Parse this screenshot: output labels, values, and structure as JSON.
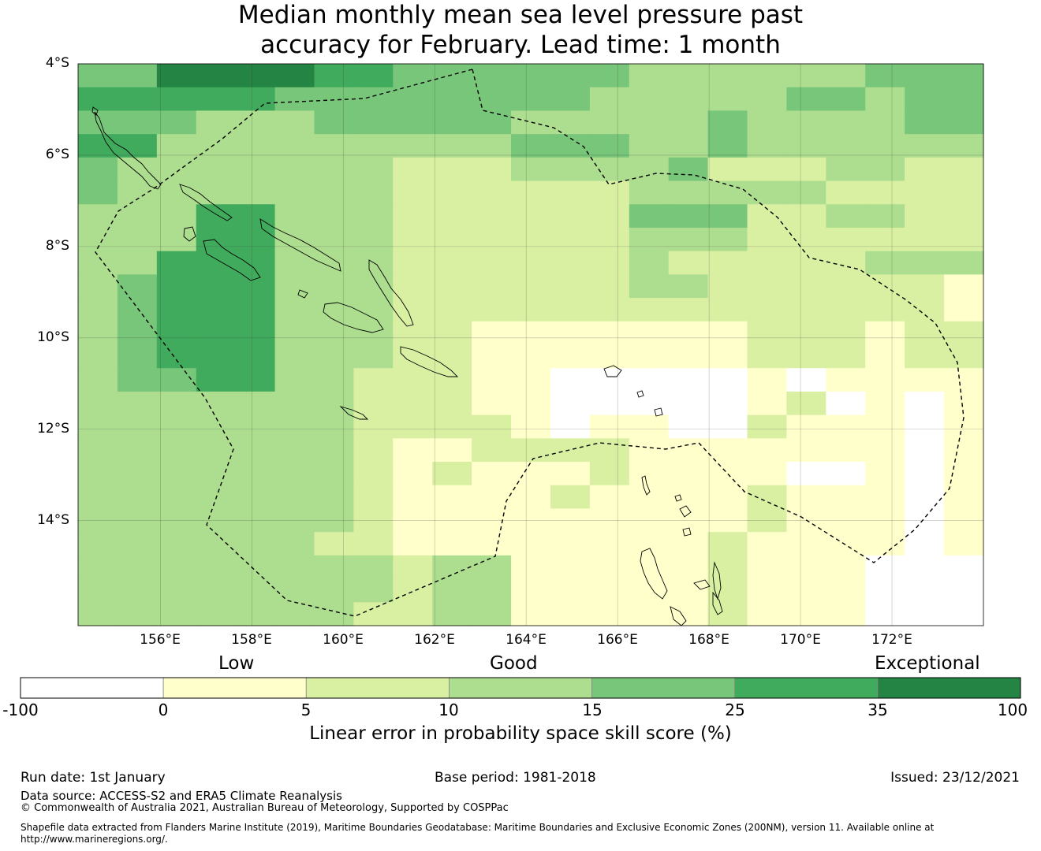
{
  "title": {
    "line1": "Median monthly mean sea level pressure past",
    "line2": "accuracy for February. Lead time: 1 month"
  },
  "map": {
    "lat_labels": [
      "4°S",
      "6°S",
      "8°S",
      "10°S",
      "12°S",
      "14°S"
    ],
    "lon_labels": [
      "156°E",
      "158°E",
      "160°E",
      "162°E",
      "164°E",
      "166°E",
      "168°E",
      "170°E",
      "172°E"
    ],
    "grid": {
      "lon_range": [
        154.2,
        174.0
      ],
      "lat_range": [
        -4.0,
        -16.3
      ],
      "cells": [
        "44666655444444333333444",
        "55555444444443333344344",
        "44433344444333334333344",
        "55333333333444334333333",
        "43333333222333342223322",
        "43333333222222333332222",
        "33355333222222444223322",
        "33355333222222333222222",
        "33555333222222322222333",
        "34555333222222332222221",
        "34555333222222222222221",
        "34555333221111111222122",
        "34555333221111111222122",
        "34455332221100000101111",
        "33333332221100000120101",
        "33333332222101100211101",
        "33333332112222111111101",
        "33333332121112111100101",
        "33333332111121111211101",
        "33333332111111111211101",
        "33333322111111112111101",
        "33333333233111112111000",
        "33333333233111112111000",
        "33333332233111112111000"
      ]
    }
  },
  "colorbar": {
    "low_label": "Low",
    "good_label": "Good",
    "exceptional_label": "Exceptional",
    "ticks": [
      "-100",
      "0",
      "5",
      "10",
      "15",
      "25",
      "35",
      "100"
    ],
    "colors": [
      "#ffffff",
      "#ffffcc",
      "#d9f0a3",
      "#addd8e",
      "#78c679",
      "#41ab5d",
      "#238443"
    ],
    "title": "Linear error in probability space skill score (%)"
  },
  "footer": {
    "run_date": "Run date: 1st January",
    "base_period": "Base period: 1981-2018",
    "issued": "Issued: 23/12/2021",
    "data_source": "Data source: ACCESS-S2 and ERA5 Climate Reanalysis",
    "copyright": "© Commonwealth of Australia 2021, Australian Bureau of Meteorology, Supported by COSPPac",
    "shapefile": "Shapefile data extracted from Flanders Marine Institute (2019), Maritime Boundaries Geodatabase: Maritime Boundaries and Exclusive Economic Zones (200NM), version 11. Available online at http://www.marineregions.org/."
  }
}
